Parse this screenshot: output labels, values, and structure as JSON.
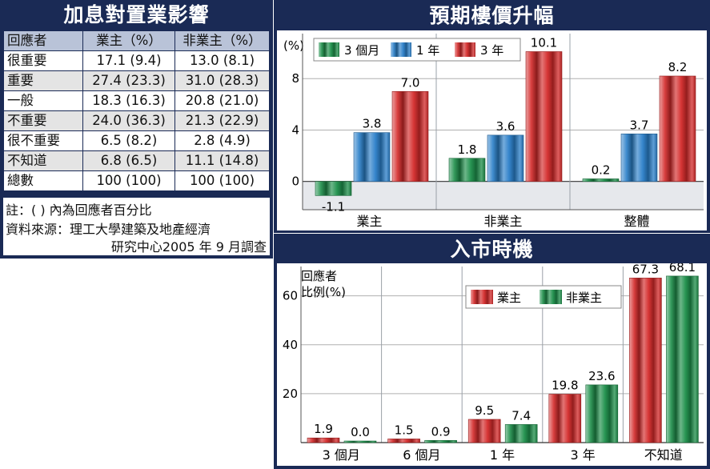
{
  "table_panel": {
    "title": "加息對置業影響",
    "headers": [
      "回應者",
      "業主（%）",
      "非業主（%）"
    ],
    "rows": [
      [
        "很重要",
        "17.1 (9.4)",
        "13.0 (8.1)"
      ],
      [
        "重要",
        "27.4 (23.3)",
        "31.0 (28.3)"
      ],
      [
        "一般",
        "18.3 (16.3)",
        "20.8 (21.0)"
      ],
      [
        "不重要",
        "24.0 (36.3)",
        "21.3 (22.9)"
      ],
      [
        "很不重要",
        "6.5 (8.2)",
        "2.8 (4.9)"
      ],
      [
        "不知道",
        "6.8 (6.5)",
        "11.1 (14.8)"
      ],
      [
        "總數",
        "100 (100)",
        "100 (100)"
      ]
    ],
    "note": "註：( ) 內為回應者百分比",
    "source_line1": "資料來源：理工大學建築及地產經濟",
    "source_line2": "研究中心2005 年 9 月調查"
  },
  "chart_data": [
    {
      "type": "bar",
      "title": "預期樓價升幅",
      "ylabel": "(%)",
      "categories": [
        "業主",
        "非業主",
        "整體"
      ],
      "series": [
        {
          "name": "3 個月",
          "values": [
            -1.1,
            1.8,
            0.2
          ],
          "color": "#1d8f4a"
        },
        {
          "name": "1 年",
          "values": [
            3.8,
            3.6,
            3.7
          ],
          "color": "#2a7fc9"
        },
        {
          "name": "3 年",
          "values": [
            7.0,
            10.1,
            8.2
          ],
          "color": "#d42a2a"
        }
      ],
      "data_labels": [
        [
          "-1.1",
          "3.8",
          "7.0"
        ],
        [
          "1.8",
          "3.6",
          "10.1"
        ],
        [
          "0.2",
          "3.7",
          "8.2"
        ]
      ],
      "yticks": [
        0,
        4,
        8
      ],
      "ylim": [
        -2.2,
        11.5
      ],
      "grid": true,
      "legend": "top-left"
    },
    {
      "type": "bar",
      "title": "入市時機",
      "ylabel_line1": "回應者",
      "ylabel_line2": "比例(%)",
      "categories": [
        "3 個月",
        "6 個月",
        "1 年",
        "3 年",
        "不知道"
      ],
      "series": [
        {
          "name": "業主",
          "values": [
            1.9,
            1.5,
            9.5,
            19.8,
            67.3
          ],
          "color": "#d42a2a"
        },
        {
          "name": "非業主",
          "values": [
            0.0,
            0.9,
            7.4,
            23.6,
            68.1
          ],
          "color": "#1d8f4a"
        }
      ],
      "data_labels": [
        [
          "1.9",
          "0.0"
        ],
        [
          "1.5",
          "0.9"
        ],
        [
          "9.5",
          "7.4"
        ],
        [
          "19.8",
          "23.6"
        ],
        [
          "67.3",
          "68.1"
        ]
      ],
      "yticks": [
        20,
        40,
        60
      ],
      "ylim": [
        0,
        72
      ],
      "grid": true,
      "legend": "top-right"
    }
  ]
}
